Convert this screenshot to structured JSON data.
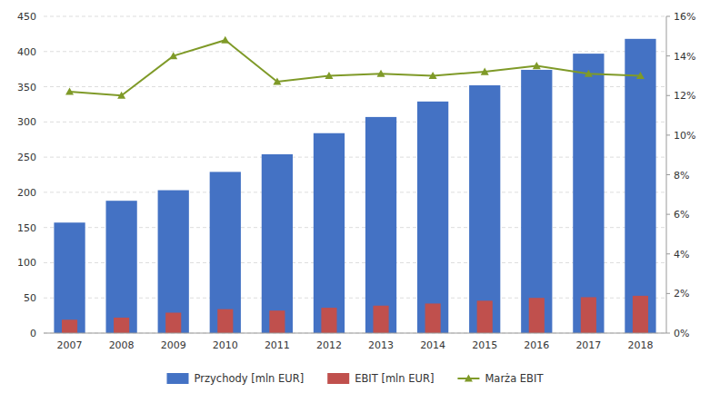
{
  "chart_data": {
    "type": "bar",
    "categories": [
      "2007",
      "2008",
      "2009",
      "2010",
      "2011",
      "2012",
      "2013",
      "2014",
      "2015",
      "2016",
      "2017",
      "2018"
    ],
    "series": [
      {
        "name": "Przychody [mln EUR]",
        "color": "#4472C4",
        "values": [
          157,
          188,
          203,
          229,
          254,
          284,
          307,
          329,
          352,
          374,
          397,
          418
        ]
      },
      {
        "name": "EBIT [mln EUR]",
        "color": "#C0504D",
        "values": [
          19,
          22,
          29,
          34,
          32,
          36,
          39,
          42,
          46,
          50,
          51,
          53
        ]
      },
      {
        "name": "Marża EBIT",
        "color": "#7F9A28",
        "type": "line",
        "marker": "triangle",
        "axis": "y2",
        "values": [
          0.122,
          0.12,
          0.14,
          0.148,
          0.127,
          0.13,
          0.131,
          0.13,
          0.132,
          0.135,
          0.131,
          0.13
        ]
      }
    ],
    "ylim": [
      0,
      450
    ],
    "yticks": [
      0,
      50,
      100,
      150,
      200,
      250,
      300,
      350,
      400,
      450
    ],
    "y2lim": [
      0,
      0.16
    ],
    "y2ticks": [
      {
        "value": 0.0,
        "label": "0%"
      },
      {
        "value": 0.02,
        "label": "2%"
      },
      {
        "value": 0.04,
        "label": "4%"
      },
      {
        "value": 0.06,
        "label": "6%"
      },
      {
        "value": 0.08,
        "label": "8%"
      },
      {
        "value": 0.1,
        "label": "10%"
      },
      {
        "value": 0.12,
        "label": "12%"
      },
      {
        "value": 0.14,
        "label": "14%"
      },
      {
        "value": 0.16,
        "label": "16%"
      }
    ],
    "grid": true,
    "legend": "bottom"
  }
}
